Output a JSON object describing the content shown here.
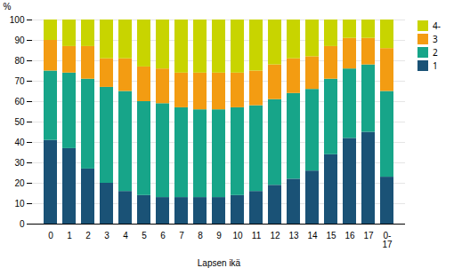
{
  "chart_data": {
    "type": "bar",
    "stacked": true,
    "categories": [
      "0",
      "1",
      "2",
      "3",
      "4",
      "5",
      "6",
      "7",
      "8",
      "9",
      "10",
      "11",
      "12",
      "13",
      "14",
      "15",
      "16",
      "17",
      "0-\n17"
    ],
    "series": [
      {
        "name": "1",
        "color": "#1a5276",
        "values": [
          41,
          37,
          27,
          20,
          16,
          14,
          13,
          13,
          13,
          13,
          14,
          16,
          19,
          22,
          26,
          34,
          42,
          45,
          23
        ]
      },
      {
        "name": "2",
        "color": "#17a589",
        "values": [
          34,
          37,
          44,
          47,
          49,
          46,
          46,
          44,
          43,
          43,
          43,
          42,
          42,
          42,
          40,
          37,
          34,
          33,
          42
        ]
      },
      {
        "name": "3",
        "color": "#f39c12",
        "values": [
          15,
          13,
          16,
          14,
          16,
          17,
          17,
          17,
          18,
          18,
          17,
          17,
          17,
          17,
          16,
          16,
          15,
          13,
          21
        ]
      },
      {
        "name": "4-",
        "color": "#c8d400",
        "values": [
          10,
          13,
          13,
          19,
          19,
          23,
          24,
          26,
          26,
          26,
          26,
          25,
          22,
          19,
          18,
          13,
          9,
          9,
          14
        ]
      }
    ],
    "xlabel": "Lapsen ikä",
    "ylabel": "%",
    "ylim": [
      0,
      100
    ],
    "yticks": [
      0,
      10,
      20,
      30,
      40,
      50,
      60,
      70,
      80,
      90,
      100
    ],
    "grid": true,
    "legend": "right"
  }
}
